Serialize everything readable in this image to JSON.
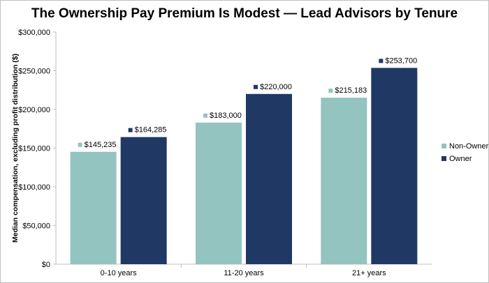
{
  "chart_data": {
    "type": "bar",
    "title": "The Ownership Pay Premium Is Modest — Lead Advisors by Tenure",
    "xlabel": "",
    "ylabel": "Median compensation, excluding profit distribution ($)",
    "categories": [
      "0-10 years",
      "11-20 years",
      "21+ years"
    ],
    "series": [
      {
        "name": "Non-Owner",
        "values": [
          145235,
          183000,
          215183
        ],
        "labels": [
          "$145,235",
          "$183,000",
          "$215,183"
        ],
        "color": "#93c4bf"
      },
      {
        "name": "Owner",
        "values": [
          164285,
          220000,
          253700
        ],
        "labels": [
          "$164,285",
          "$220,000",
          "$253,700"
        ],
        "color": "#203864"
      }
    ],
    "ylim": [
      0,
      300000
    ],
    "yticks": [
      0,
      50000,
      100000,
      150000,
      200000,
      250000,
      300000
    ],
    "ytick_labels": [
      "$0",
      "$50,000",
      "$100,000",
      "$150,000",
      "$200,000",
      "$250,000",
      "$300,000"
    ],
    "grid": false,
    "legend_position": "right"
  }
}
